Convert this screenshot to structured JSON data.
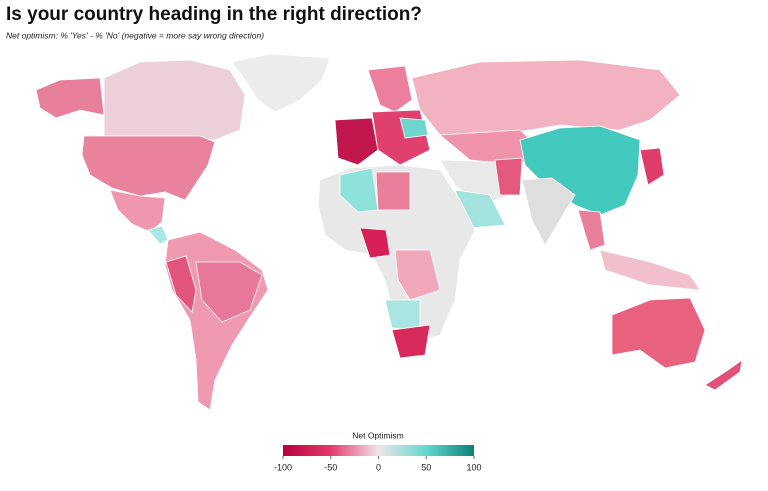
{
  "title": "Is your country heading in the right direction?",
  "subtitle": "Net optimism: % 'Yes' - % 'No' (negative = more say wrong direction)",
  "legend": {
    "title": "Net Optimism",
    "min": -100,
    "max": 100,
    "ticks": [
      -100,
      -50,
      0,
      50,
      100
    ],
    "colors": [
      "#b8003c",
      "#e33a6b",
      "#f0e4e8",
      "#62d8cf",
      "#0b7f78"
    ]
  }
}
